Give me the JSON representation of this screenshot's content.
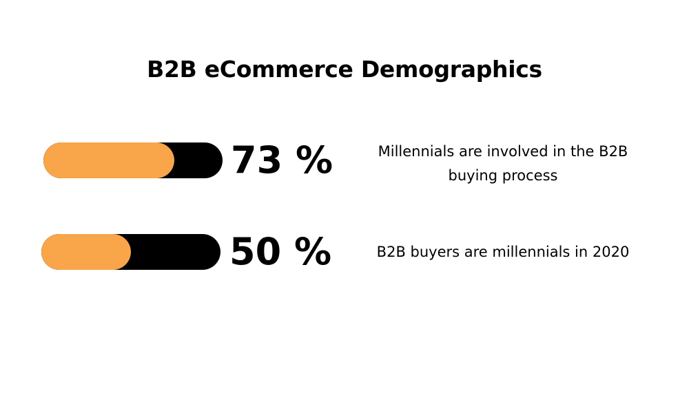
{
  "title": "B2B eCommerce Demographics",
  "colors": {
    "fill": "#f9a54a",
    "track": "#000000",
    "background": "#ffffff"
  },
  "chart_data": {
    "type": "bar",
    "title": "B2B eCommerce Demographics",
    "ylim": [
      0,
      100
    ],
    "stats": [
      {
        "value": 73,
        "label": "73 %",
        "description": "Millennials are involved in the B2B buying process"
      },
      {
        "value": 50,
        "label": "50 %",
        "description": "B2B buyers are millennials in 2020"
      }
    ]
  }
}
